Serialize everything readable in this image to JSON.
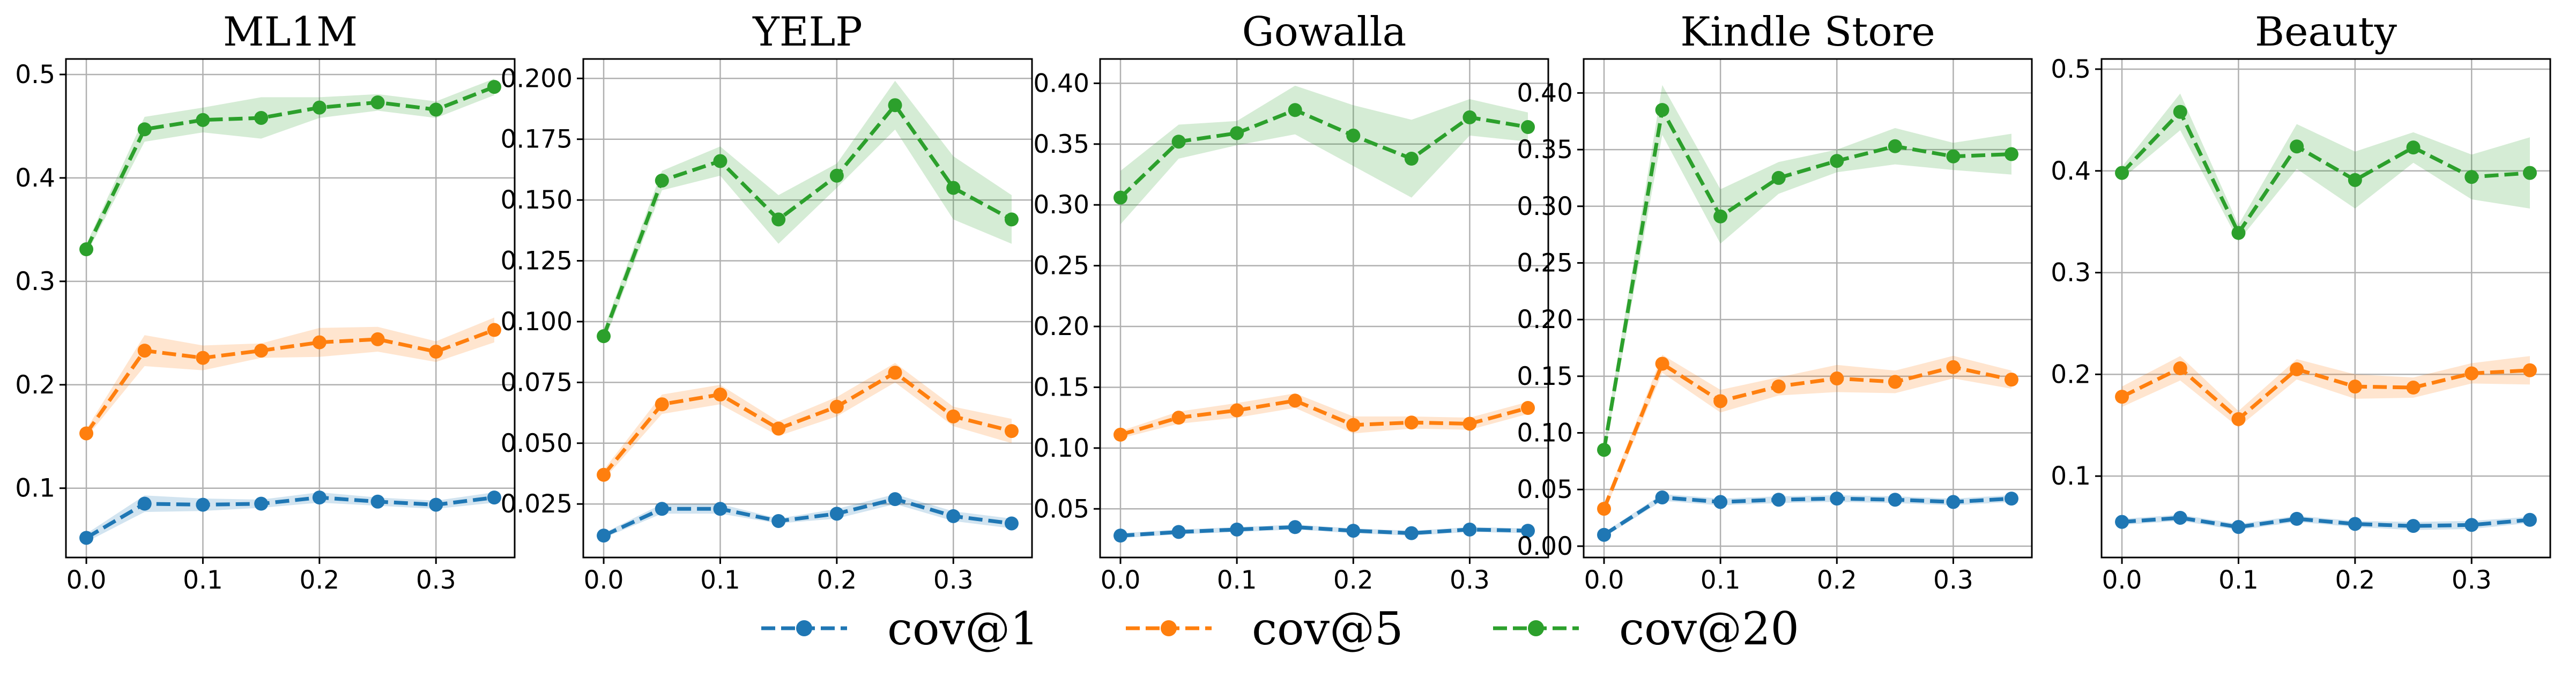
{
  "chart_data": {
    "type": "line",
    "legend": {
      "placement": "bottom-center",
      "entries": [
        {
          "name": "cov@1",
          "color": "#1f77b4"
        },
        {
          "name": "cov@5",
          "color": "#ff7f0e"
        },
        {
          "name": "cov@20",
          "color": "#2ca02c"
        }
      ]
    },
    "x": [
      0.0,
      0.05,
      0.1,
      0.15,
      0.2,
      0.25,
      0.3,
      0.35
    ],
    "panels": [
      {
        "title": "ML1M",
        "xlim": [
          -0.0175,
          0.3675
        ],
        "ylim": [
          0.033,
          0.515
        ],
        "xticks": [
          0.0,
          0.1,
          0.2,
          0.3
        ],
        "xtick_labels": [
          "0.0",
          "0.1",
          "0.2",
          "0.3"
        ],
        "yticks": [
          0.1,
          0.2,
          0.3,
          0.4,
          0.5
        ],
        "ytick_labels": [
          "0.1",
          "0.2",
          "0.3",
          "0.4",
          "0.5"
        ],
        "series": [
          {
            "name": "cov@1",
            "values": [
              0.052,
              0.085,
              0.084,
              0.085,
              0.091,
              0.087,
              0.084,
              0.091
            ],
            "band": [
              0.004,
              0.008,
              0.006,
              0.004,
              0.005,
              0.004,
              0.004,
              0.005
            ]
          },
          {
            "name": "cov@5",
            "values": [
              0.153,
              0.233,
              0.226,
              0.233,
              0.241,
              0.244,
              0.232,
              0.253
            ],
            "band": [
              0.004,
              0.015,
              0.012,
              0.007,
              0.014,
              0.012,
              0.01,
              0.012
            ]
          },
          {
            "name": "cov@20",
            "values": [
              0.331,
              0.447,
              0.456,
              0.458,
              0.468,
              0.473,
              0.466,
              0.488
            ],
            "band": [
              0.005,
              0.012,
              0.012,
              0.02,
              0.01,
              0.008,
              0.008,
              0.008
            ]
          }
        ]
      },
      {
        "title": "YELP",
        "xlim": [
          -0.0175,
          0.3675
        ],
        "ylim": [
          0.003,
          0.208
        ],
        "xticks": [
          0.0,
          0.1,
          0.2,
          0.3
        ],
        "xtick_labels": [
          "0.0",
          "0.1",
          "0.2",
          "0.3"
        ],
        "yticks": [
          0.025,
          0.05,
          0.075,
          0.1,
          0.125,
          0.15,
          0.175,
          0.2
        ],
        "ytick_labels": [
          "0.025",
          "0.050",
          "0.075",
          "0.100",
          "0.125",
          "0.150",
          "0.175",
          "0.200"
        ],
        "series": [
          {
            "name": "cov@1",
            "values": [
              0.012,
              0.023,
              0.023,
              0.018,
              0.021,
              0.027,
              0.02,
              0.017
            ],
            "band": [
              0.001,
              0.002,
              0.002,
              0.001,
              0.002,
              0.002,
              0.002,
              0.002
            ]
          },
          {
            "name": "cov@5",
            "values": [
              0.037,
              0.066,
              0.07,
              0.056,
              0.065,
              0.079,
              0.061,
              0.055
            ],
            "band": [
              0.002,
              0.004,
              0.004,
              0.003,
              0.004,
              0.004,
              0.004,
              0.005
            ]
          },
          {
            "name": "cov@20",
            "values": [
              0.094,
              0.158,
              0.166,
              0.142,
              0.16,
              0.189,
              0.155,
              0.142
            ],
            "band": [
              0.003,
              0.004,
              0.006,
              0.01,
              0.005,
              0.01,
              0.013,
              0.01
            ]
          }
        ]
      },
      {
        "title": "Gowalla",
        "xlim": [
          -0.0175,
          0.3675
        ],
        "ylim": [
          0.01,
          0.42
        ],
        "xticks": [
          0.0,
          0.1,
          0.2,
          0.3
        ],
        "xtick_labels": [
          "0.0",
          "0.1",
          "0.2",
          "0.3"
        ],
        "yticks": [
          0.05,
          0.1,
          0.15,
          0.2,
          0.25,
          0.3,
          0.35,
          0.4
        ],
        "ytick_labels": [
          "0.05",
          "0.10",
          "0.15",
          "0.20",
          "0.25",
          "0.30",
          "0.35",
          "0.40"
        ],
        "series": [
          {
            "name": "cov@1",
            "values": [
              0.028,
              0.031,
              0.033,
              0.035,
              0.032,
              0.03,
              0.033,
              0.032
            ],
            "band": [
              0.002,
              0.002,
              0.002,
              0.002,
              0.002,
              0.002,
              0.002,
              0.002
            ]
          },
          {
            "name": "cov@5",
            "values": [
              0.111,
              0.125,
              0.131,
              0.139,
              0.119,
              0.121,
              0.12,
              0.133
            ],
            "band": [
              0.003,
              0.005,
              0.006,
              0.006,
              0.007,
              0.005,
              0.005,
              0.005
            ]
          },
          {
            "name": "cov@20",
            "values": [
              0.306,
              0.352,
              0.359,
              0.378,
              0.357,
              0.338,
              0.372,
              0.364
            ],
            "band": [
              0.022,
              0.014,
              0.01,
              0.02,
              0.025,
              0.032,
              0.015,
              0.012
            ]
          }
        ]
      },
      {
        "title": "Kindle Store",
        "xlim": [
          -0.0175,
          0.3675
        ],
        "ylim": [
          -0.01,
          0.43
        ],
        "xticks": [
          0.0,
          0.1,
          0.2,
          0.3
        ],
        "xtick_labels": [
          "0.0",
          "0.1",
          "0.2",
          "0.3"
        ],
        "yticks": [
          0.0,
          0.05,
          0.1,
          0.15,
          0.2,
          0.25,
          0.3,
          0.35,
          0.4
        ],
        "ytick_labels": [
          "0.00",
          "0.05",
          "0.10",
          "0.15",
          "0.20",
          "0.25",
          "0.30",
          "0.35",
          "0.40"
        ],
        "series": [
          {
            "name": "cov@1",
            "values": [
              0.01,
              0.043,
              0.039,
              0.041,
              0.042,
              0.041,
              0.039,
              0.042
            ],
            "band": [
              0.002,
              0.003,
              0.003,
              0.003,
              0.003,
              0.003,
              0.003,
              0.003
            ]
          },
          {
            "name": "cov@5",
            "values": [
              0.033,
              0.161,
              0.128,
              0.141,
              0.148,
              0.145,
              0.158,
              0.147
            ],
            "band": [
              0.004,
              0.008,
              0.01,
              0.008,
              0.012,
              0.01,
              0.01,
              0.008
            ]
          },
          {
            "name": "cov@20",
            "values": [
              0.085,
              0.385,
              0.291,
              0.325,
              0.34,
              0.353,
              0.344,
              0.346
            ],
            "band": [
              0.006,
              0.022,
              0.024,
              0.014,
              0.01,
              0.016,
              0.012,
              0.018
            ]
          }
        ]
      },
      {
        "title": "Beauty",
        "xlim": [
          -0.0175,
          0.3675
        ],
        "ylim": [
          0.02,
          0.51
        ],
        "xticks": [
          0.0,
          0.1,
          0.2,
          0.3
        ],
        "xtick_labels": [
          "0.0",
          "0.1",
          "0.2",
          "0.3"
        ],
        "yticks": [
          0.1,
          0.2,
          0.3,
          0.4,
          0.5
        ],
        "ytick_labels": [
          "0.1",
          "0.2",
          "0.3",
          "0.4",
          "0.5"
        ],
        "series": [
          {
            "name": "cov@1",
            "values": [
              0.055,
              0.059,
              0.05,
              0.058,
              0.053,
              0.051,
              0.052,
              0.057
            ],
            "band": [
              0.003,
              0.003,
              0.003,
              0.003,
              0.003,
              0.004,
              0.004,
              0.003
            ]
          },
          {
            "name": "cov@5",
            "values": [
              0.178,
              0.206,
              0.156,
              0.205,
              0.188,
              0.187,
              0.201,
              0.204
            ],
            "band": [
              0.01,
              0.012,
              0.008,
              0.01,
              0.012,
              0.01,
              0.01,
              0.014
            ]
          },
          {
            "name": "cov@20",
            "values": [
              0.398,
              0.458,
              0.339,
              0.424,
              0.391,
              0.423,
              0.394,
              0.398
            ],
            "band": [
              0.006,
              0.018,
              0.008,
              0.022,
              0.028,
              0.015,
              0.022,
              0.035
            ]
          }
        ]
      }
    ]
  }
}
